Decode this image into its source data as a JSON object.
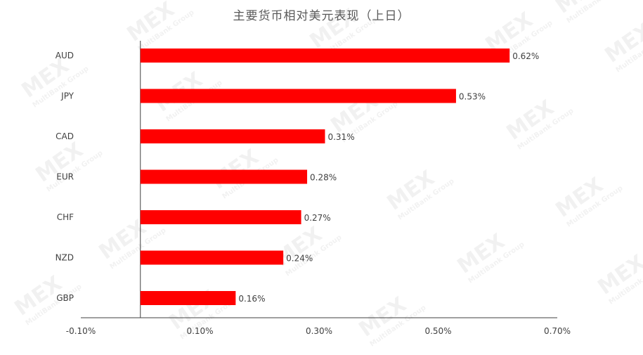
{
  "chart_data": {
    "type": "bar",
    "orientation": "horizontal",
    "title": "主要货币相对美元表现（上日）",
    "categories": [
      "AUD",
      "JPY",
      "CAD",
      "EUR",
      "CHF",
      "NZD",
      "GBP"
    ],
    "values": [
      0.62,
      0.53,
      0.31,
      0.28,
      0.27,
      0.24,
      0.16
    ],
    "data_labels": [
      "0.62%",
      "0.53%",
      "0.31%",
      "0.28%",
      "0.27%",
      "0.24%",
      "0.16%"
    ],
    "xlim": [
      -0.1,
      0.7
    ],
    "xticks": [
      -0.1,
      0.1,
      0.3,
      0.5,
      0.7
    ],
    "xtick_labels": [
      "-0.10%",
      "0.10%",
      "0.30%",
      "0.50%",
      "0.70%"
    ],
    "grid": false,
    "legend": "none",
    "bar_color": "#FF0000"
  },
  "watermark": {
    "logo": "MEX",
    "text": "MultiBank Group"
  }
}
